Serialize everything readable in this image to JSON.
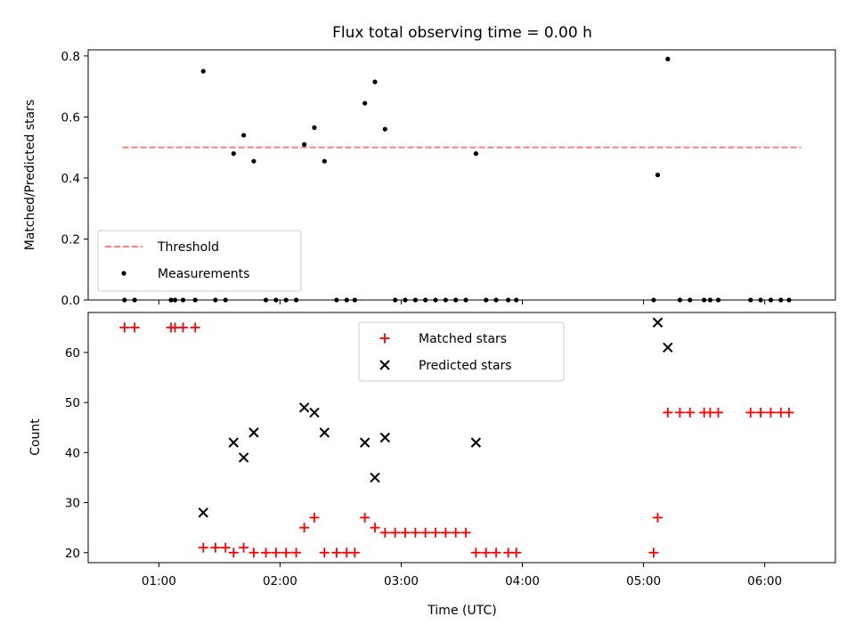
{
  "chart_data": [
    {
      "type": "scatter",
      "title": "Flux total observing time = 0.00 h",
      "xlabel": "",
      "ylabel": "Matched/Predicted stars",
      "xlim": [
        "00:25",
        "06:35"
      ],
      "ylim": [
        0,
        0.82
      ],
      "yticks": [
        0.0,
        0.2,
        0.4,
        0.6,
        0.8
      ],
      "ytick_labels": [
        "0.0",
        "0.2",
        "0.4",
        "0.6",
        "0.8"
      ],
      "grid": false,
      "legend_position": "lower-left",
      "threshold": {
        "name": "Threshold",
        "value": 0.5,
        "x_range": [
          "00:42",
          "06:18"
        ],
        "color": "#ff7f7f",
        "style": "dashed"
      },
      "series": [
        {
          "name": "Measurements",
          "color": "#000000",
          "points": [
            [
              "00:43",
              0.0
            ],
            [
              "00:48",
              0.0
            ],
            [
              "01:06",
              0.0
            ],
            [
              "01:08",
              0.0
            ],
            [
              "01:12",
              0.0
            ],
            [
              "01:18",
              0.0
            ],
            [
              "01:22",
              0.75
            ],
            [
              "01:28",
              0.0
            ],
            [
              "01:33",
              0.0
            ],
            [
              "01:37",
              0.48
            ],
            [
              "01:42",
              0.54
            ],
            [
              "01:47",
              0.455
            ],
            [
              "01:53",
              0.0
            ],
            [
              "01:58",
              0.0
            ],
            [
              "02:03",
              0.0
            ],
            [
              "02:08",
              0.0
            ],
            [
              "02:12",
              0.51
            ],
            [
              "02:17",
              0.565
            ],
            [
              "02:22",
              0.455
            ],
            [
              "02:28",
              0.0
            ],
            [
              "02:33",
              0.0
            ],
            [
              "02:37",
              0.0
            ],
            [
              "02:42",
              0.645
            ],
            [
              "02:47",
              0.715
            ],
            [
              "02:52",
              0.56
            ],
            [
              "02:57",
              0.0
            ],
            [
              "03:02",
              0.0
            ],
            [
              "03:07",
              0.0
            ],
            [
              "03:12",
              0.0
            ],
            [
              "03:17",
              0.0
            ],
            [
              "03:22",
              0.0
            ],
            [
              "03:27",
              0.0
            ],
            [
              "03:32",
              0.0
            ],
            [
              "03:37",
              0.48
            ],
            [
              "03:42",
              0.0
            ],
            [
              "03:47",
              0.0
            ],
            [
              "03:53",
              0.0
            ],
            [
              "03:57",
              0.0
            ],
            [
              "05:05",
              0.0
            ],
            [
              "05:07",
              0.41
            ],
            [
              "05:12",
              0.79
            ],
            [
              "05:18",
              0.0
            ],
            [
              "05:23",
              0.0
            ],
            [
              "05:30",
              0.0
            ],
            [
              "05:33",
              0.0
            ],
            [
              "05:37",
              0.0
            ],
            [
              "05:53",
              0.0
            ],
            [
              "05:58",
              0.0
            ],
            [
              "06:03",
              0.0
            ],
            [
              "06:08",
              0.0
            ],
            [
              "06:12",
              0.0
            ]
          ]
        }
      ]
    },
    {
      "type": "scatter",
      "title": "",
      "xlabel": "Time (UTC)",
      "ylabel": "Count",
      "xlim": [
        "00:25",
        "06:35"
      ],
      "xticks": [
        "01:00",
        "02:00",
        "03:00",
        "04:00",
        "05:00",
        "06:00"
      ],
      "xtick_labels": [
        "01:00",
        "02:00",
        "03:00",
        "04:00",
        "05:00",
        "06:00"
      ],
      "ylim": [
        18,
        68
      ],
      "yticks": [
        20,
        30,
        40,
        50,
        60
      ],
      "ytick_labels": [
        "20",
        "30",
        "40",
        "50",
        "60"
      ],
      "grid": false,
      "legend_position": "upper-center",
      "series": [
        {
          "name": "Matched stars",
          "marker": "plus",
          "color": "#ff0000",
          "points": [
            [
              "00:43",
              65
            ],
            [
              "00:48",
              65
            ],
            [
              "01:06",
              65
            ],
            [
              "01:08",
              65
            ],
            [
              "01:12",
              65
            ],
            [
              "01:18",
              65
            ],
            [
              "01:22",
              21
            ],
            [
              "01:28",
              21
            ],
            [
              "01:33",
              21
            ],
            [
              "01:37",
              20
            ],
            [
              "01:42",
              21
            ],
            [
              "01:47",
              20
            ],
            [
              "01:53",
              20
            ],
            [
              "01:58",
              20
            ],
            [
              "02:03",
              20
            ],
            [
              "02:08",
              20
            ],
            [
              "02:12",
              25
            ],
            [
              "02:17",
              27
            ],
            [
              "02:22",
              20
            ],
            [
              "02:28",
              20
            ],
            [
              "02:33",
              20
            ],
            [
              "02:37",
              20
            ],
            [
              "02:42",
              27
            ],
            [
              "02:47",
              25
            ],
            [
              "02:52",
              24
            ],
            [
              "02:57",
              24
            ],
            [
              "03:02",
              24
            ],
            [
              "03:07",
              24
            ],
            [
              "03:12",
              24
            ],
            [
              "03:17",
              24
            ],
            [
              "03:22",
              24
            ],
            [
              "03:27",
              24
            ],
            [
              "03:32",
              24
            ],
            [
              "03:37",
              20
            ],
            [
              "03:42",
              20
            ],
            [
              "03:47",
              20
            ],
            [
              "03:53",
              20
            ],
            [
              "03:57",
              20
            ],
            [
              "05:05",
              20
            ],
            [
              "05:07",
              27
            ],
            [
              "05:12",
              48
            ],
            [
              "05:18",
              48
            ],
            [
              "05:23",
              48
            ],
            [
              "05:30",
              48
            ],
            [
              "05:33",
              48
            ],
            [
              "05:37",
              48
            ],
            [
              "05:53",
              48
            ],
            [
              "05:58",
              48
            ],
            [
              "06:03",
              48
            ],
            [
              "06:08",
              48
            ],
            [
              "06:12",
              48
            ]
          ]
        },
        {
          "name": "Predicted stars",
          "marker": "x",
          "color": "#000000",
          "points": [
            [
              "01:22",
              28
            ],
            [
              "01:37",
              42
            ],
            [
              "01:42",
              39
            ],
            [
              "01:47",
              44
            ],
            [
              "02:12",
              49
            ],
            [
              "02:17",
              48
            ],
            [
              "02:22",
              44
            ],
            [
              "02:42",
              42
            ],
            [
              "02:47",
              35
            ],
            [
              "02:52",
              43
            ],
            [
              "03:37",
              42
            ],
            [
              "05:07",
              66
            ],
            [
              "05:12",
              61
            ]
          ]
        }
      ]
    }
  ]
}
